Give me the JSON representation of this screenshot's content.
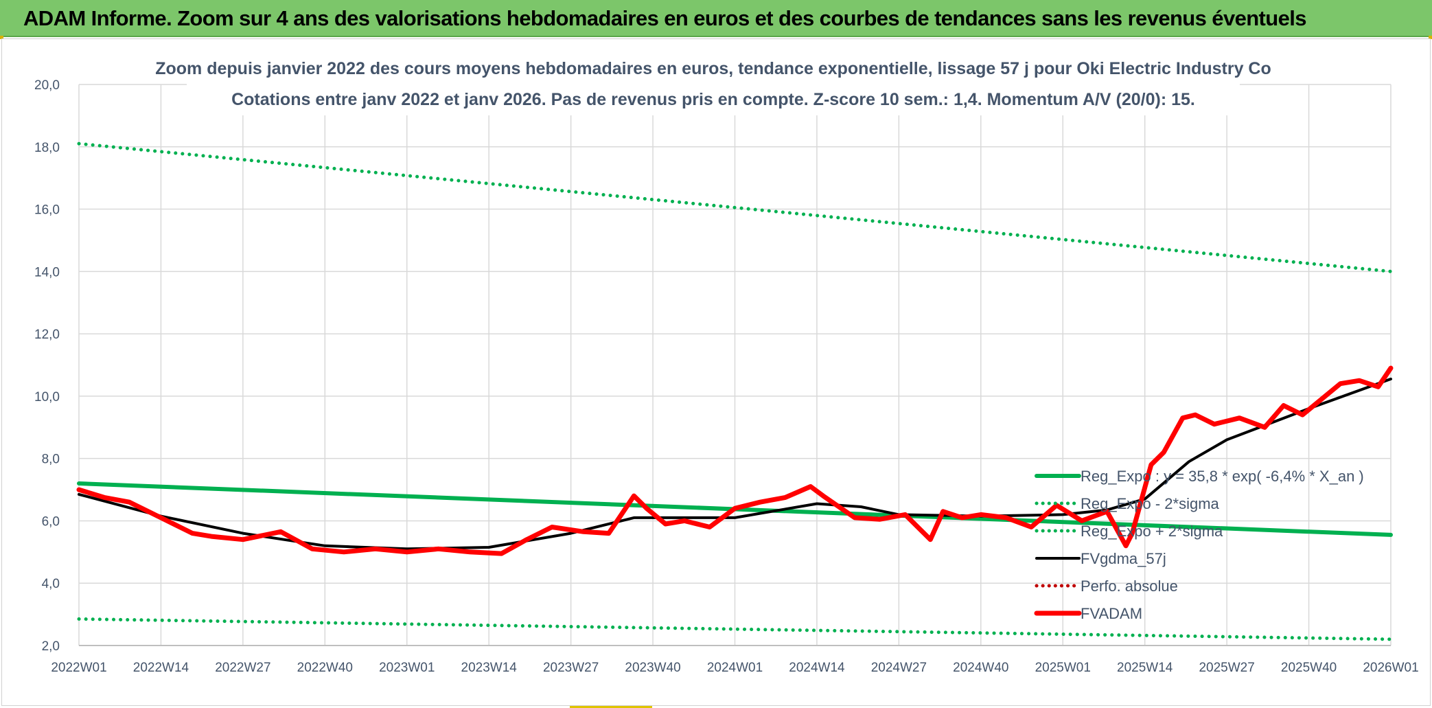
{
  "banner": {
    "title": "ADAM Informe. Zoom sur 4 ans des valorisations hebdomadaires en euros et des courbes de tendances sans les revenus éventuels",
    "background": "#7cc66a"
  },
  "chart_data": {
    "type": "line",
    "title": "Zoom depuis janvier 2022 des cours moyens hebdomadaires en euros, tendance exponentielle, lissage 57 j pour Oki Electric Industry Co",
    "subtitle": "Cotations entre janv 2022 et janv 2026. Pas de revenus pris en compte. Z-score 10 sem.: 1,4. Momentum A/V (20/0): 15.",
    "xlabel": "",
    "ylabel": "",
    "ylim": [
      2,
      20
    ],
    "yticks": [
      "2,0",
      "4,0",
      "6,0",
      "8,0",
      "10,0",
      "12,0",
      "14,0",
      "16,0",
      "18,0",
      "20,0"
    ],
    "xlim": [
      0,
      208
    ],
    "xticks": [
      {
        "label": "2022W01",
        "x": 0
      },
      {
        "label": "2022W14",
        "x": 13
      },
      {
        "label": "2022W27",
        "x": 26
      },
      {
        "label": "2022W40",
        "x": 39
      },
      {
        "label": "2023W01",
        "x": 52
      },
      {
        "label": "2023W14",
        "x": 65
      },
      {
        "label": "2023W27",
        "x": 78
      },
      {
        "label": "2023W40",
        "x": 91
      },
      {
        "label": "2024W01",
        "x": 104
      },
      {
        "label": "2024W14",
        "x": 117
      },
      {
        "label": "2024W27",
        "x": 130
      },
      {
        "label": "2024W40",
        "x": 143
      },
      {
        "label": "2025W01",
        "x": 156
      },
      {
        "label": "2025W14",
        "x": 169
      },
      {
        "label": "2025W27",
        "x": 182
      },
      {
        "label": "2025W40",
        "x": 195
      },
      {
        "label": "2026W01",
        "x": 208
      }
    ],
    "grid": true,
    "legend_position": "bottom-right",
    "legend": [
      {
        "label": "Reg_Expo : y = 35,8 * exp( -6,4% *  X_an )",
        "color": "#00b050",
        "style": "solid"
      },
      {
        "label": "Reg_Expo - 2*sigma",
        "color": "#00b050",
        "style": "dotted"
      },
      {
        "label": "Reg_Expo + 2*sigma",
        "color": "#00b050",
        "style": "dotted"
      },
      {
        "label": "FVgdma_57j",
        "color": "#000000",
        "style": "solid"
      },
      {
        "label": "Perfo. absolue",
        "color": "#c00000",
        "style": "dotted"
      },
      {
        "label": "FVADAM",
        "color": "#ff0000",
        "style": "solid"
      }
    ],
    "series": [
      {
        "name": "Reg_Expo : y = 35,8 * exp( -6,4% *  X_an )",
        "color": "#00b050",
        "style": "solid",
        "width": 6,
        "x": [
          0,
          208
        ],
        "values": [
          7.2,
          5.55
        ]
      },
      {
        "name": "Reg_Expo + 2*sigma",
        "color": "#00b050",
        "style": "dotted",
        "width": 5,
        "x": [
          0,
          208
        ],
        "values": [
          18.1,
          14.0
        ]
      },
      {
        "name": "Reg_Expo - 2*sigma",
        "color": "#00b050",
        "style": "dotted",
        "width": 5,
        "x": [
          0,
          208
        ],
        "values": [
          2.85,
          2.2
        ]
      },
      {
        "name": "FVgdma_57j",
        "color": "#000000",
        "style": "solid",
        "width": 4,
        "x": [
          0,
          13,
          26,
          39,
          52,
          65,
          78,
          88,
          104,
          117,
          124,
          130,
          143,
          156,
          163,
          169,
          176,
          182,
          195,
          208
        ],
        "values": [
          6.85,
          6.15,
          5.6,
          5.2,
          5.1,
          5.15,
          5.6,
          6.1,
          6.1,
          6.55,
          6.45,
          6.2,
          6.15,
          6.2,
          6.35,
          6.7,
          7.9,
          8.6,
          9.6,
          10.55
        ]
      },
      {
        "name": "FVADAM",
        "color": "#ff0000",
        "style": "solid",
        "width": 7,
        "x": [
          0,
          4,
          8,
          13,
          18,
          21,
          26,
          32,
          37,
          42,
          47,
          52,
          57,
          62,
          67,
          71,
          75,
          80,
          84,
          88,
          90,
          93,
          96,
          100,
          104,
          108,
          112,
          116,
          118,
          123,
          127,
          131,
          135,
          137,
          140,
          143,
          147,
          151,
          155,
          159,
          163,
          166,
          167,
          170,
          172,
          175,
          177,
          180,
          184,
          188,
          191,
          194,
          197,
          200,
          203,
          206,
          208
        ],
        "values": [
          7.0,
          6.75,
          6.6,
          6.1,
          5.6,
          5.5,
          5.4,
          5.65,
          5.1,
          5.0,
          5.1,
          5.0,
          5.1,
          5.0,
          4.95,
          5.4,
          5.8,
          5.65,
          5.6,
          6.8,
          6.4,
          5.9,
          6.0,
          5.8,
          6.4,
          6.6,
          6.75,
          7.1,
          6.8,
          6.1,
          6.05,
          6.2,
          5.4,
          6.3,
          6.1,
          6.2,
          6.1,
          5.8,
          6.5,
          6.0,
          6.3,
          5.2,
          5.6,
          7.8,
          8.2,
          9.3,
          9.4,
          9.1,
          9.3,
          9.0,
          9.7,
          9.4,
          9.9,
          10.4,
          10.5,
          10.3,
          10.9
        ]
      }
    ]
  }
}
